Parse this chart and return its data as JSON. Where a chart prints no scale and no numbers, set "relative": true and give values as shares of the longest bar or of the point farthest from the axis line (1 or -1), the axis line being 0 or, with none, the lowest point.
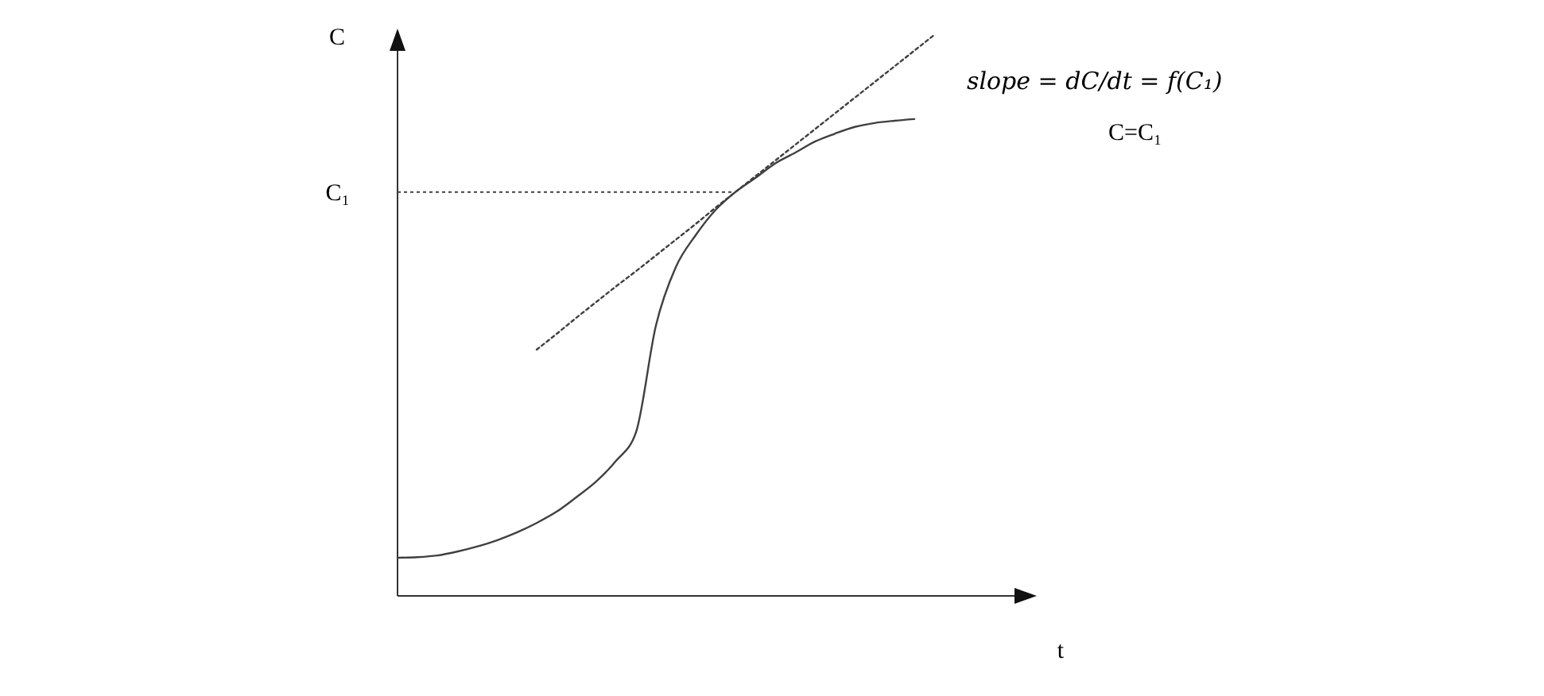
{
  "chart_data": {
    "type": "line",
    "relative": true,
    "xlabel": "t",
    "ylabel": "C",
    "categories": [
      null,
      null,
      null,
      null,
      null,
      null,
      null,
      null,
      null,
      null,
      null,
      null,
      null,
      null,
      null,
      null,
      null,
      null,
      null,
      null,
      null,
      null,
      null,
      null,
      null,
      null,
      null,
      null,
      null
    ],
    "series": [
      {
        "color": "#404040",
        "line_style": "solid",
        "values": [
          0.068,
          0.069,
          0.072,
          0.079,
          0.088,
          0.099,
          0.113,
          0.13,
          0.15,
          0.176,
          0.204,
          0.241,
          0.292,
          0.482,
          0.586,
          0.643,
          0.688,
          0.72,
          0.745,
          0.771,
          0.79,
          0.81,
          0.824,
          0.836,
          0.843,
          0.847,
          0.85,
          null,
          null
        ]
      },
      {
        "color": "#404040",
        "line_style": "dotted",
        "values": [
          null,
          null,
          null,
          null,
          null,
          null,
          null,
          0.439,
          0.467,
          0.496,
          0.524,
          0.552,
          0.579,
          0.607,
          0.635,
          0.663,
          0.692,
          0.72,
          0.748,
          0.776,
          0.804,
          0.832,
          0.86,
          0.888,
          0.916,
          0.944,
          0.972,
          1,
          null
        ]
      }
    ],
    "ref_lines": [
      {
        "axis": "y",
        "value": 0.72,
        "label": "C₁",
        "line_style": "dotted",
        "color": "#404040"
      }
    ],
    "annotations": [
      "slope = dC/dt = f(C₁)",
      "C=C₁"
    ]
  }
}
